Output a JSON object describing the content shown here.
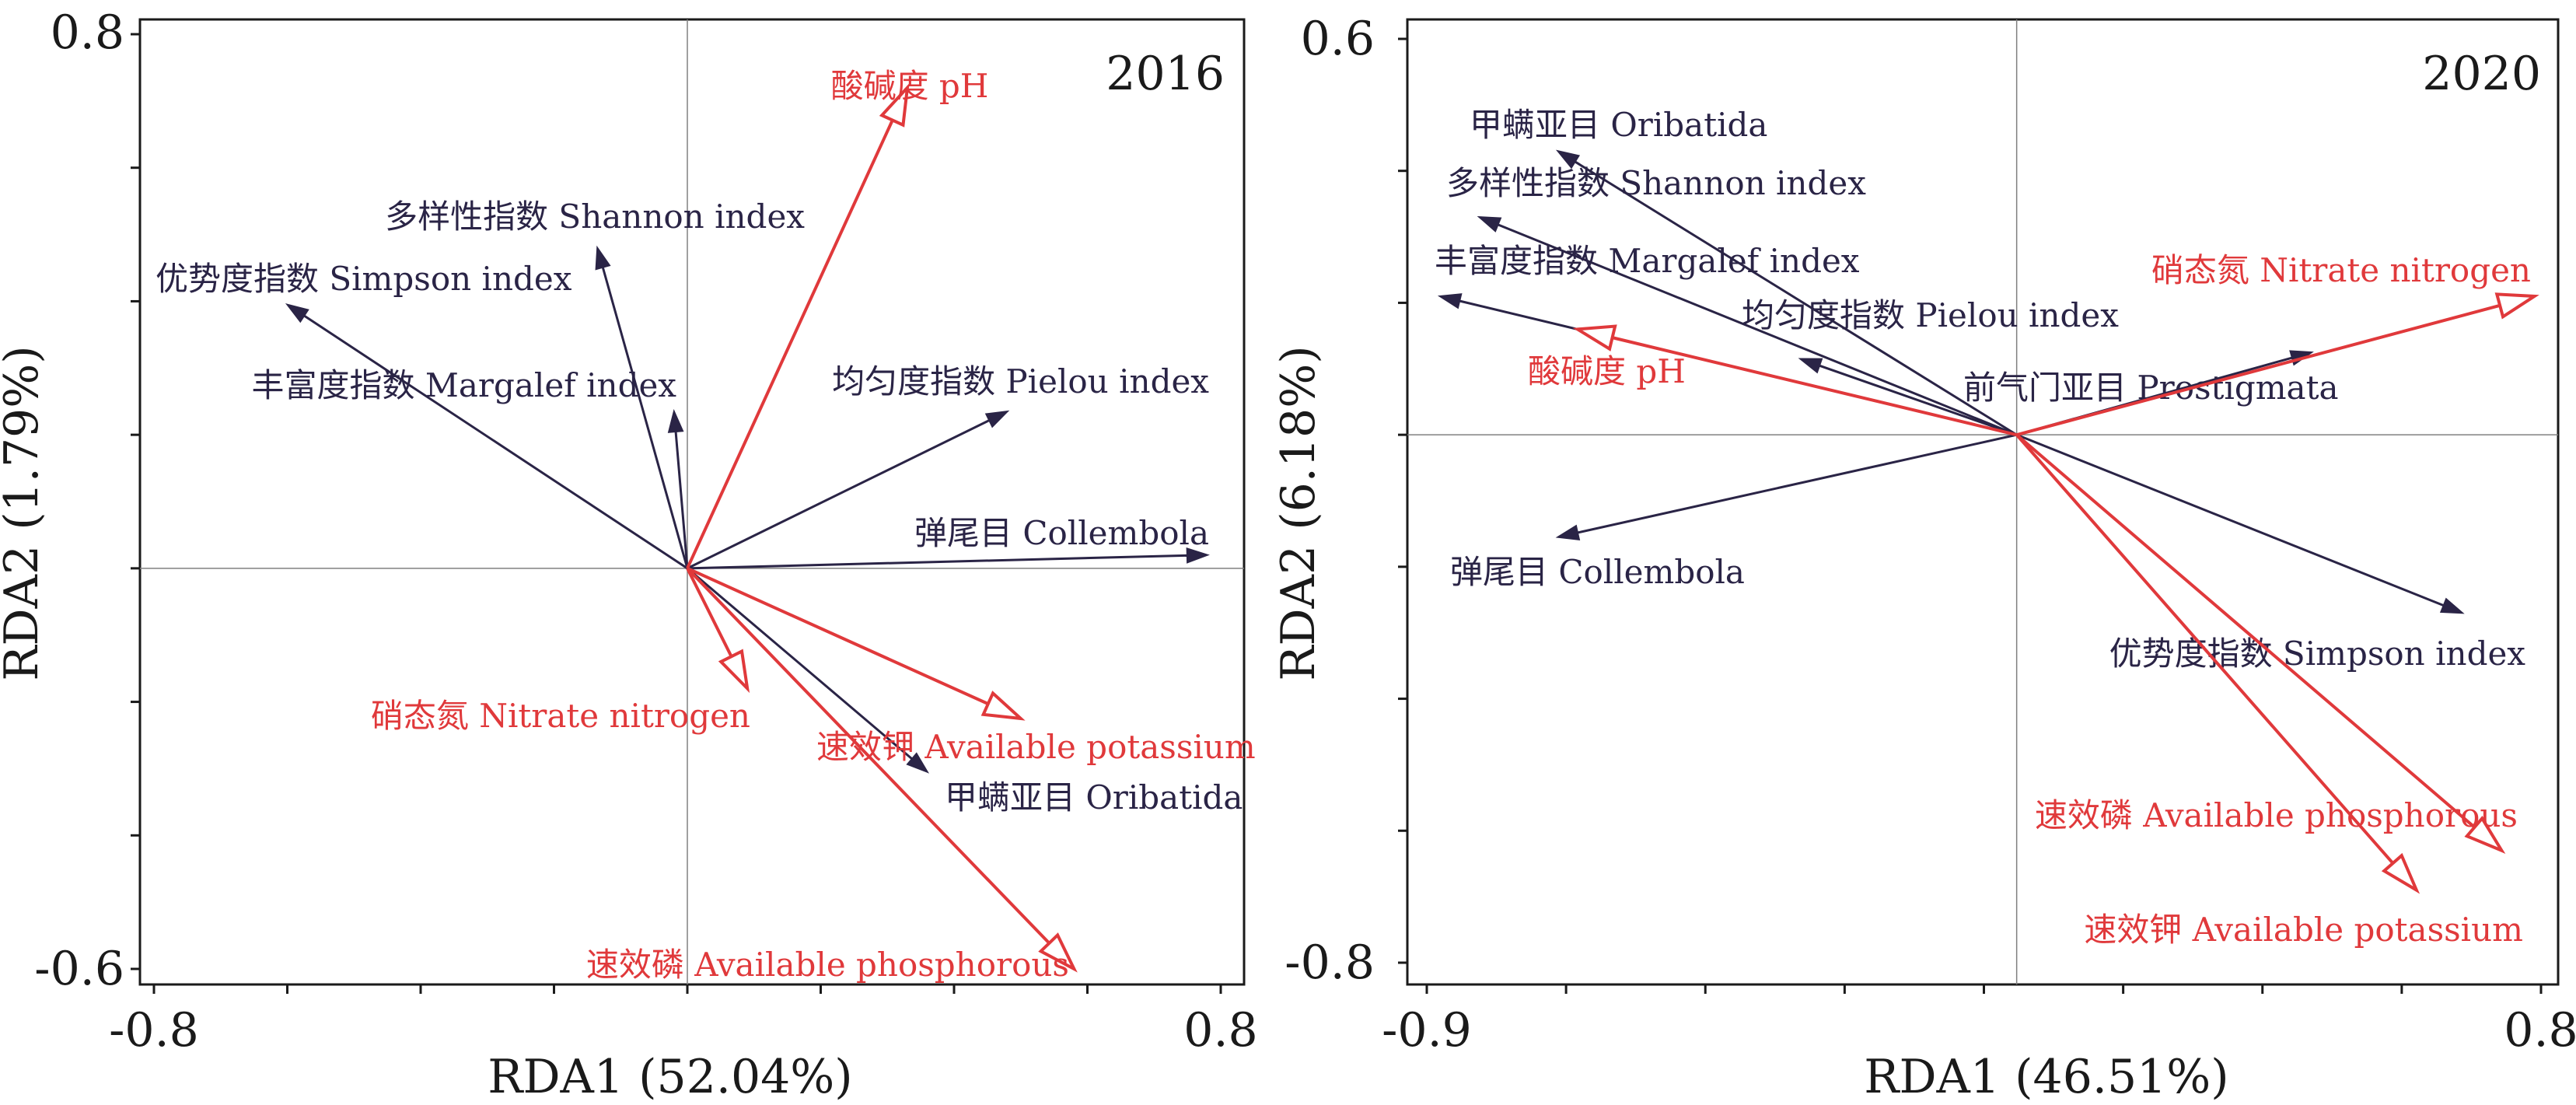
{
  "colors": {
    "species": "#2a2446",
    "env": "#e0393b",
    "axis": "#1a1a1a",
    "ref": "#808080"
  },
  "chart_data": [
    {
      "type": "rda-biplot",
      "title": "2016",
      "xlabel": "RDA1 (52.04%)",
      "ylabel": "RDA2 (1.79%)",
      "xlim": [
        -0.8,
        0.8
      ],
      "ylim": [
        -0.6,
        0.8
      ],
      "xticks_labels": [
        "-0.8",
        "0.8"
      ],
      "yticks_labels": [
        "0.8",
        "-0.6"
      ],
      "species": [
        {
          "name": "Shannon",
          "label": "多样性指数 Shannon index",
          "x": -0.135,
          "y": 0.48
        },
        {
          "name": "Simpson",
          "label": "优势度指数 Simpson index",
          "x": -0.6,
          "y": 0.395
        },
        {
          "name": "Margalef",
          "label": "丰富度指数 Margalef index",
          "x": -0.02,
          "y": 0.235
        },
        {
          "name": "Pielou",
          "label": "均匀度指数 Pielou index",
          "x": 0.48,
          "y": 0.235
        },
        {
          "name": "Collembola",
          "label": "弹尾目 Collembola",
          "x": 0.78,
          "y": 0.02
        },
        {
          "name": "Oribatida",
          "label": "甲螨亚目 Oribatida",
          "x": 0.36,
          "y": -0.305
        }
      ],
      "env": [
        {
          "name": "pH",
          "label": "酸碱度 pH",
          "x": 0.33,
          "y": 0.72
        },
        {
          "name": "Nitrate",
          "label": "硝态氮 Nitrate nitrogen",
          "x": 0.09,
          "y": -0.18
        },
        {
          "name": "AK",
          "label": "速效钾 Available potassium",
          "x": 0.5,
          "y": -0.225
        },
        {
          "name": "AP",
          "label": "速效磷 Available phosphorous",
          "x": 0.58,
          "y": -0.6
        }
      ]
    },
    {
      "type": "rda-biplot",
      "title": "2020",
      "xlabel": "RDA1 (46.51%)",
      "ylabel": "RDA2 (6.18%)",
      "xlim": [
        -0.9,
        0.8
      ],
      "ylim": [
        -0.8,
        0.6
      ],
      "xticks_labels": [
        "-0.9",
        "0.8"
      ],
      "yticks_labels": [
        "0.6",
        "-0.8"
      ],
      "species": [
        {
          "name": "Oribatida",
          "label": "甲螨亚目 Oribatida",
          "x": -0.7,
          "y": 0.43
        },
        {
          "name": "Shannon",
          "label": "多样性指数 Shannon index",
          "x": -0.82,
          "y": 0.33
        },
        {
          "name": "Margalef",
          "label": "丰富度指数 Margalef index",
          "x": -0.88,
          "y": 0.21
        },
        {
          "name": "Pielou",
          "label": "均匀度指数 Pielou index",
          "x": -0.33,
          "y": 0.115
        },
        {
          "name": "Prostigmata",
          "label": "前气门亚目 Prostigmata",
          "x": 0.45,
          "y": 0.125
        },
        {
          "name": "Collembola",
          "label": "弹尾目 Collembola",
          "x": -0.7,
          "y": -0.155
        },
        {
          "name": "Simpson",
          "label": "优势度指数 Simpson index",
          "x": 0.68,
          "y": -0.27
        }
      ],
      "env": [
        {
          "name": "Nitrate",
          "label": "硝态氮 Nitrate nitrogen",
          "x": 0.79,
          "y": 0.21
        },
        {
          "name": "pH",
          "label": "酸碱度 pH",
          "x": -0.67,
          "y": 0.16
        },
        {
          "name": "AP",
          "label": "速效磷 Available phosphorous",
          "x": 0.74,
          "y": -0.63
        },
        {
          "name": "AK",
          "label": "速效钾 Available potassium",
          "x": 0.61,
          "y": -0.69
        }
      ]
    }
  ]
}
